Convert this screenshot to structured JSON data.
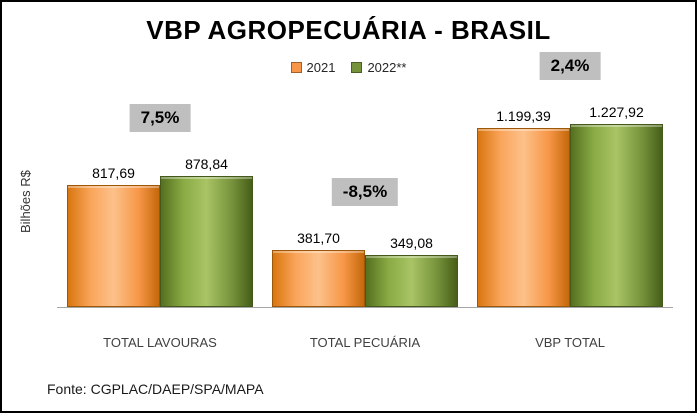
{
  "chart_data": {
    "type": "bar",
    "title": "VBP AGROPECUÁRIA - BRASIL",
    "ylabel": "Bilhões R$",
    "xlabel": "",
    "categories": [
      "TOTAL LAVOURAS",
      "TOTAL PECUÁRIA",
      "VBP TOTAL"
    ],
    "series": [
      {
        "name": "2021",
        "color": "#F79646",
        "values": [
          817.69,
          381.7,
          1199.39
        ],
        "labels": [
          "817,69",
          "381,70",
          "1.199,39"
        ]
      },
      {
        "name": "2022**",
        "color": "#76933C",
        "values": [
          878.84,
          349.08,
          1227.92
        ],
        "labels": [
          "878,84",
          "349,08",
          "1.227,92"
        ]
      }
    ],
    "annotations": [
      {
        "category": "TOTAL LAVOURAS",
        "label": "7,5%"
      },
      {
        "category": "TOTAL PECUÁRIA",
        "label": "-8,5%"
      },
      {
        "category": "VBP TOTAL",
        "label": "2,4%"
      }
    ],
    "annotation_bg": "#BFBFBF",
    "ylim": [
      0,
      1500
    ],
    "grid": false,
    "legend_position": "top",
    "source": "Fonte: CGPLAC/DAEP/SPA/MAPA"
  }
}
